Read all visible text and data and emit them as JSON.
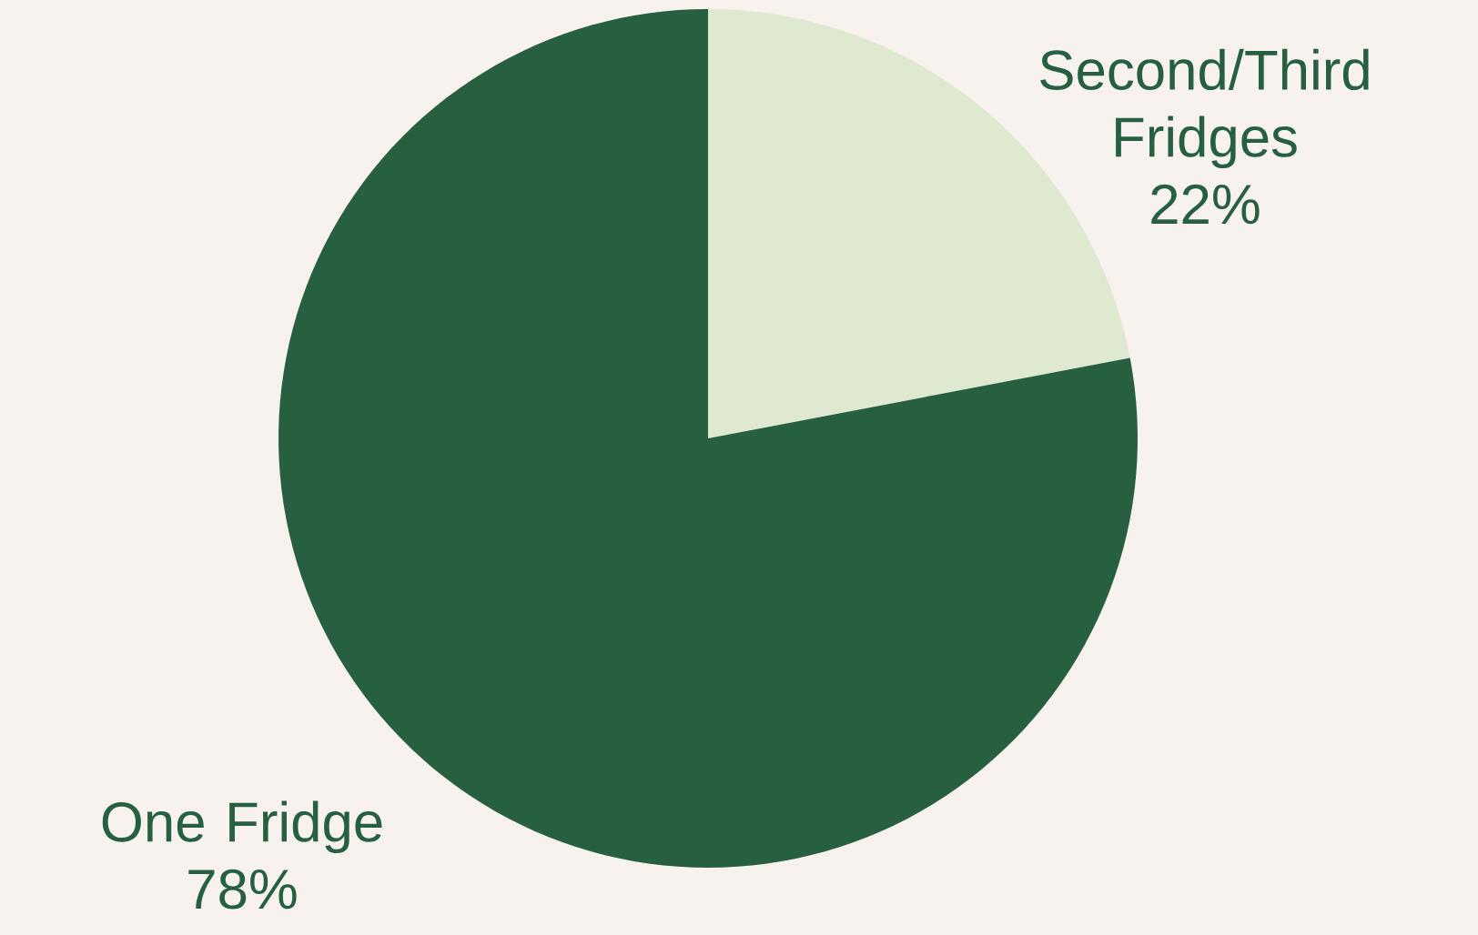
{
  "chart_data": {
    "type": "pie",
    "categories": [
      "Second/Third Fridges",
      "One Fridge"
    ],
    "values": [
      22,
      78
    ],
    "colors": [
      "#dfe8d0",
      "#276041"
    ],
    "value_labels": [
      "22%",
      "78%"
    ]
  }
}
